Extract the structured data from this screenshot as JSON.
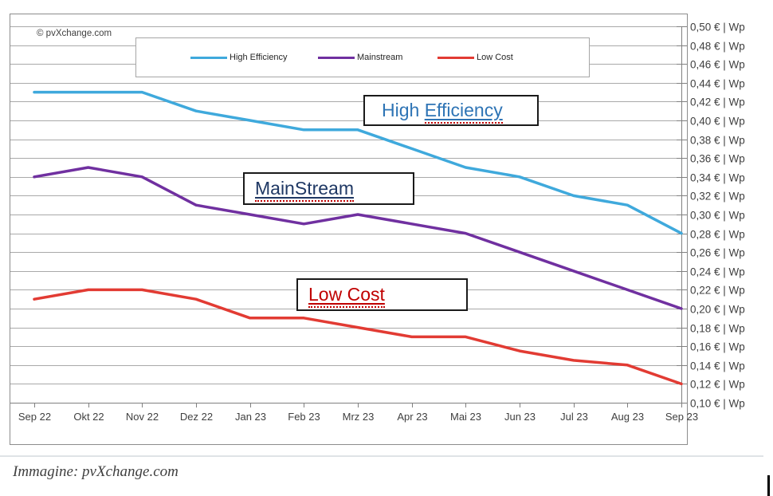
{
  "page": {
    "copyright": "© pvXchange.com",
    "caption": "Immagine: pvXchange.com"
  },
  "legend": {
    "items": [
      {
        "label": "High Efficiency",
        "color": "#3FA9DC"
      },
      {
        "label": "Mainstream",
        "color": "#7030A0"
      },
      {
        "label": "Low Cost",
        "color": "#E23B33"
      }
    ]
  },
  "annotations": {
    "high_efficiency": {
      "prefix": "High ",
      "underlined": "Efficiency",
      "color": "#2E74B5"
    },
    "mainstream": {
      "prefix": "",
      "underlined": "MainStream",
      "color": "#1F3864"
    },
    "low_cost": {
      "prefix": "",
      "underlined": "Low Cost",
      "color": "#C00000"
    }
  },
  "chart_data": {
    "type": "line",
    "title": "",
    "source": "© pvXchange.com",
    "grid": true,
    "legend_position": "top",
    "categories": [
      "Sep 22",
      "Okt 22",
      "Nov 22",
      "Dez 22",
      "Jan 23",
      "Feb 23",
      "Mrz 23",
      "Apr 23",
      "Mai 23",
      "Jun 23",
      "Jul 23",
      "Aug 23",
      "Sep 23"
    ],
    "series": [
      {
        "name": "High Efficiency",
        "color": "#3FA9DC",
        "values": [
          0.43,
          0.43,
          0.43,
          0.41,
          0.4,
          0.39,
          0.39,
          0.37,
          0.35,
          0.34,
          0.32,
          0.31,
          0.28
        ]
      },
      {
        "name": "Mainstream",
        "color": "#7030A0",
        "values": [
          0.34,
          0.35,
          0.34,
          0.31,
          0.3,
          0.29,
          0.3,
          0.29,
          0.28,
          0.26,
          0.24,
          0.22,
          0.2
        ]
      },
      {
        "name": "Low Cost",
        "color": "#E23B33",
        "values": [
          0.21,
          0.22,
          0.22,
          0.21,
          0.19,
          0.19,
          0.18,
          0.17,
          0.17,
          0.155,
          0.145,
          0.14,
          0.12
        ]
      }
    ],
    "y_axis": {
      "min": 0.1,
      "max": 0.5,
      "step": 0.02,
      "unit": "€ | Wp",
      "tick_labels": [
        "0,50 € | Wp",
        "0,48 € | Wp",
        "0,46 € | Wp",
        "0,44 € | Wp",
        "0,42 € | Wp",
        "0,40 € | Wp",
        "0,38 € | Wp",
        "0,36 € | Wp",
        "0,34 € | Wp",
        "0,32 € | Wp",
        "0,30 € | Wp",
        "0,28 € | Wp",
        "0,26 € | Wp",
        "0,24 € | Wp",
        "0,22 € | Wp",
        "0,20 € | Wp",
        "0,18 € | Wp",
        "0,16 € | Wp",
        "0,14 € | Wp",
        "0,12 € | Wp",
        "0,10 € | Wp"
      ]
    },
    "xlabel": "",
    "ylabel": "€ | Wp"
  }
}
